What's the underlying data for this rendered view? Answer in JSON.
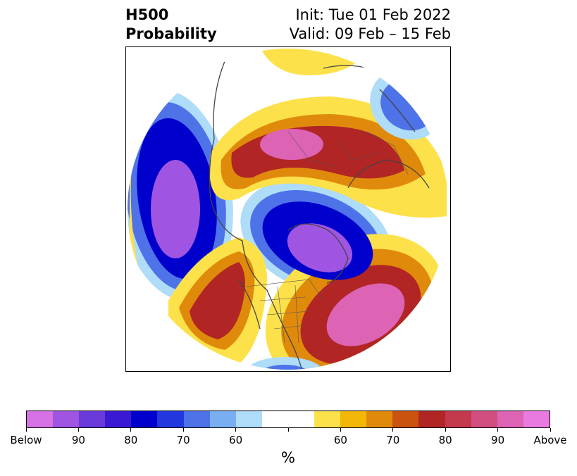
{
  "header": {
    "title_line1": "H500",
    "title_line2": "Probability",
    "init": "Init: Tue 01 Feb 2022",
    "valid": "Valid: 09 Feb – 15 Feb"
  },
  "colorbar": {
    "unit": "%",
    "colors": [
      "#d672e6",
      "#9f55e2",
      "#6a3adb",
      "#3b18d4",
      "#0000cc",
      "#2238de",
      "#4e72e8",
      "#79aff2",
      "#aedcf9",
      "#ffffff",
      "#ffffff",
      "#fde14a",
      "#f2b707",
      "#e08a0c",
      "#c9530f",
      "#b12525",
      "#c4394b",
      "#d24e80",
      "#dd63b4",
      "#e97ae0"
    ],
    "tick_labels": [
      "Below",
      "90",
      "80",
      "70",
      "60",
      "",
      "60",
      "70",
      "80",
      "90",
      "Above"
    ]
  },
  "map": {
    "projection": "north-polar-stereographic",
    "colors": {
      "below_light": "#aedcf9",
      "below_mid": "#4e72e8",
      "below_dark": "#0000cc",
      "below_max": "#9f55e2",
      "above_light": "#fde14a",
      "above_mid": "#e08a0c",
      "above_dark": "#b12525",
      "above_max": "#dd63b4"
    }
  }
}
